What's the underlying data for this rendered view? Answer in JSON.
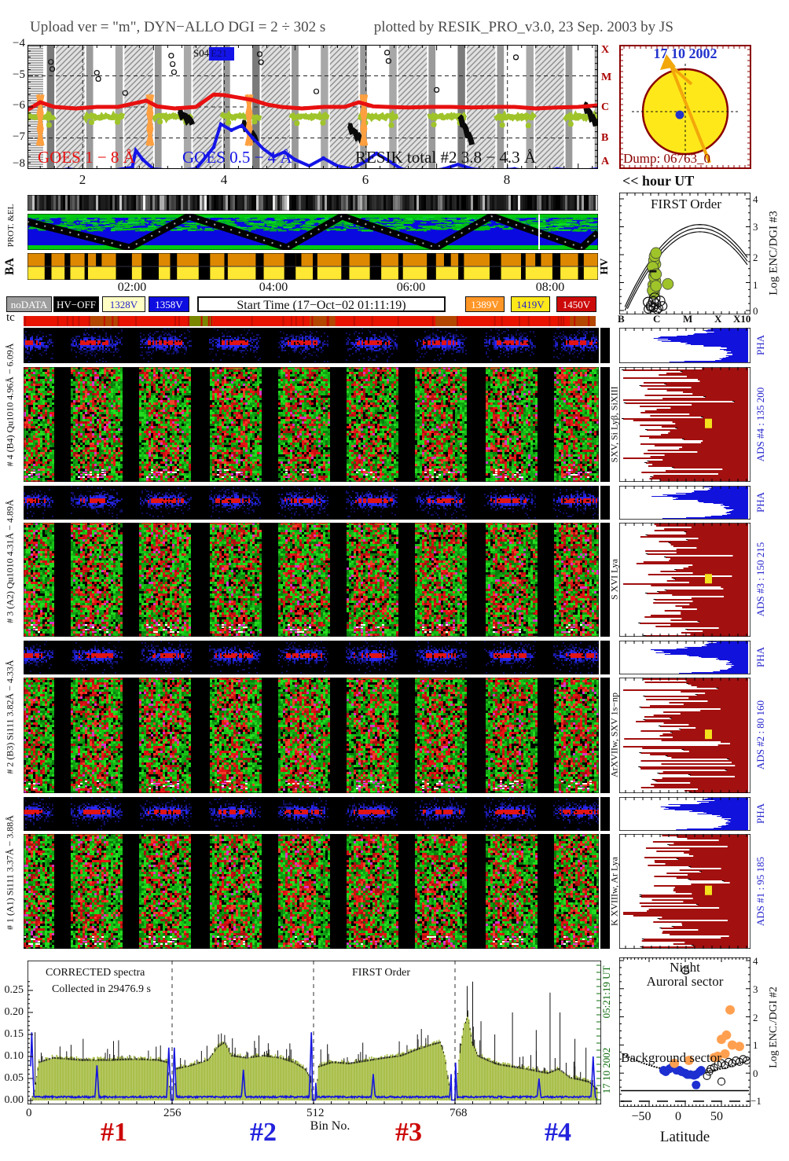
{
  "header": {
    "title_left": "Upload ver = \"m\", DYN−ALLO DGI =   2 ÷ 302 s",
    "title_right": "plotted by RESIK_PRO_v3.0, 23 Sep. 2003 by JS"
  },
  "goes": {
    "y_ticks": [
      "−4",
      "−5",
      "−6",
      "−7",
      "−8"
    ],
    "x_ticks": [
      "2",
      "4",
      "6",
      "8"
    ],
    "class_letters": [
      "X",
      "M",
      "C",
      "B",
      "A"
    ],
    "region_plain": "S04",
    "region_boxed": "E21",
    "labels": [
      {
        "text": "GOES 1 − 8 Å",
        "color": "#e81010"
      },
      {
        "text": "GOES 0.5 − 4 Å",
        "color": "#1414e8"
      },
      {
        "text": "RESIK total #2  3.8 − 4.3 Å",
        "color": "#101010"
      }
    ]
  },
  "sun": {
    "date": "17 10 2002",
    "dump": "Dump: 06763_0",
    "disk_color": "#ffe81a",
    "border_color": "#8b0000",
    "date_color": "#2233cc",
    "arrow_color": "#f2a70a"
  },
  "hour_ut": "<< hour UT",
  "strips": {
    "prot_label": "PROT. &EL",
    "ba_label": "BA",
    "hv_label": "HV",
    "tc_label": "tc",
    "times": [
      "02:00",
      "04:00",
      "06:00",
      "08:00"
    ]
  },
  "legend": {
    "items": [
      {
        "label": "noDATA",
        "bg": "#9e9e9e",
        "fg": "#ffffff"
      },
      {
        "label": "HV−OFF",
        "bg": "#000000",
        "fg": "#ffffff"
      },
      {
        "label": "1328V",
        "bg": "#ffffc4",
        "fg": "#2222cc"
      },
      {
        "label": "1358V",
        "bg": "#0d0de0",
        "fg": "#ffffff"
      },
      {
        "label": "1389V",
        "bg": "#ff9626",
        "fg": "#ffffff"
      },
      {
        "label": "1419V",
        "bg": "#ffe81a",
        "fg": "#2222cc"
      },
      {
        "label": "1450V",
        "bg": "#cc0a0a",
        "fg": "#ffffff"
      }
    ],
    "start_time": "Start Time (17−Oct−02 01:11:19)"
  },
  "channels": [
    {
      "left_label": "# 4 (B4) Qu1010 4.96Å − 6.09Å",
      "species": "SXV, Si Lyβ, SiXIII",
      "pha": "PHA",
      "ads": "ADS #4 :   135 200"
    },
    {
      "left_label": "# 3 (A2) Qu1010 4.31Å − 4.89Å",
      "species": "S XVI Lya",
      "pha": "PHA",
      "ads": "ADS #3 :   150 215"
    },
    {
      "left_label": "# 2 (B3) Si111  3.82Å − 4.33Å",
      "species": "ArXVIIw, SXV 1s−np",
      "pha": "PHA",
      "ads": "ADS #2 :   80 160"
    },
    {
      "left_label": "# 1 (A1) Si111  3.37Å − 3.88Å",
      "species": "K XVIIIw, Ar Lya",
      "pha": "PHA",
      "ads": "ADS #1 :   95 185"
    }
  ],
  "first_order": {
    "title": "FIRST Order",
    "x_ticks": [
      "B",
      "C",
      "M",
      "X",
      "X10"
    ],
    "y_ticks": [
      "4",
      "3",
      "2",
      "1",
      "0"
    ],
    "axis_label": "Log ENC/DGI #3"
  },
  "spectra": {
    "corrected": "CORRECTED spectra",
    "collected": "Collected in 29476.9 s",
    "order": "FIRST Order",
    "y_ticks": [
      "0.25",
      "0.20",
      "0.15",
      "0.10",
      "0.05",
      "0.00"
    ],
    "x_ticks": [
      "0",
      "256",
      "512",
      "768"
    ],
    "x_label": "Bin No.",
    "segments": [
      {
        "label": "#1",
        "color": "#cc0808"
      },
      {
        "label": "#2",
        "color": "#2222dd"
      },
      {
        "label": "#3",
        "color": "#cc0808"
      },
      {
        "label": "#4",
        "color": "#2222dd"
      }
    ],
    "time_top": "05:21:19 UT",
    "time_bottom": "17 10 2002"
  },
  "scatter_panel": {
    "title_1": "Night",
    "title_2": "Auroral sector",
    "bottom_label": "Background sector",
    "x_ticks": [
      "−50",
      "0",
      "50"
    ],
    "x_label": "Latitude",
    "y_ticks": [
      "4",
      "3",
      "2",
      "1",
      "0",
      "−1"
    ],
    "axis_label": "Log ENC./DGI #2"
  },
  "chart_data": {
    "goes_lightcurves": {
      "type": "line",
      "x_unit": "hour UT",
      "x_range": [
        1.22,
        9.28
      ],
      "y_unit": "log X-ray flux (GOES classes A-X)",
      "y_range": [
        -8,
        -4
      ],
      "series": [
        {
          "name": "GOES 1-8 A",
          "color": "#e81010",
          "points": [
            [
              1.22,
              -6.1
            ],
            [
              1.4,
              -5.85
            ],
            [
              1.6,
              -6.0
            ],
            [
              1.9,
              -6.05
            ],
            [
              2.2,
              -6.0
            ],
            [
              2.5,
              -6.0
            ],
            [
              2.9,
              -5.8
            ],
            [
              3.05,
              -5.98
            ],
            [
              3.3,
              -6.05
            ],
            [
              3.6,
              -6.0
            ],
            [
              3.85,
              -5.6
            ],
            [
              4.0,
              -5.62
            ],
            [
              4.2,
              -5.7
            ],
            [
              4.4,
              -5.78
            ],
            [
              4.6,
              -5.92
            ],
            [
              4.8,
              -6.0
            ],
            [
              5.1,
              -6.05
            ],
            [
              5.4,
              -6.0
            ],
            [
              5.7,
              -6.0
            ],
            [
              5.9,
              -5.85
            ],
            [
              6.1,
              -5.98
            ],
            [
              6.3,
              -6.0
            ],
            [
              6.6,
              -6.02
            ],
            [
              6.9,
              -6.0
            ],
            [
              7.2,
              -6.0
            ],
            [
              7.5,
              -6.02
            ],
            [
              7.8,
              -6.0
            ],
            [
              8.1,
              -6.0
            ],
            [
              8.4,
              -6.05
            ],
            [
              8.7,
              -6.02
            ],
            [
              9.0,
              -6.0
            ],
            [
              9.28,
              -5.95
            ]
          ]
        },
        {
          "name": "GOES 0.5-4 A",
          "color": "#1414e8",
          "points": [
            [
              1.22,
              -8.05
            ],
            [
              1.5,
              -8.1
            ],
            [
              1.8,
              -8.0
            ],
            [
              2.1,
              -8.1
            ],
            [
              2.4,
              -8.05
            ],
            [
              2.7,
              -7.95
            ],
            [
              2.75,
              -7.4
            ],
            [
              2.85,
              -7.7
            ],
            [
              3.0,
              -8.0
            ],
            [
              3.3,
              -8.05
            ],
            [
              3.6,
              -8.0
            ],
            [
              3.85,
              -7.3
            ],
            [
              3.95,
              -6.55
            ],
            [
              4.1,
              -6.75
            ],
            [
              4.25,
              -6.6
            ],
            [
              4.4,
              -7.0
            ],
            [
              4.55,
              -7.35
            ],
            [
              4.7,
              -7.6
            ],
            [
              4.85,
              -7.45
            ],
            [
              5.0,
              -7.7
            ],
            [
              5.2,
              -7.9
            ],
            [
              5.4,
              -7.65
            ],
            [
              5.6,
              -7.9
            ],
            [
              5.8,
              -8.0
            ],
            [
              6.0,
              -7.75
            ],
            [
              6.15,
              -7.5
            ],
            [
              6.3,
              -7.7
            ],
            [
              6.5,
              -8.0
            ],
            [
              6.8,
              -8.1
            ],
            [
              7.1,
              -8.0
            ],
            [
              7.3,
              -7.85
            ],
            [
              7.5,
              -8.0
            ],
            [
              7.8,
              -8.05
            ],
            [
              8.1,
              -8.0
            ],
            [
              8.4,
              -8.1
            ],
            [
              8.7,
              -8.0
            ],
            [
              9.0,
              -8.05
            ],
            [
              9.28,
              -8.0
            ]
          ]
        },
        {
          "name": "RESIK total #2 3.8-4.3 A",
          "color": "#9fc42a",
          "shape": "festoons: baseline -6.32 with spikes to -5.45 every ~0.97 h, gaps during orbital night"
        }
      ],
      "black_blobs": [
        [
          3.35,
          -6.15,
          3.55,
          -6.5
        ],
        [
          4.25,
          -6.5,
          4.45,
          -7.05
        ],
        [
          5.75,
          -6.6,
          5.95,
          -7.1
        ],
        [
          7.32,
          -6.3,
          7.5,
          -7.15
        ],
        [
          9.08,
          -5.9,
          9.25,
          -6.55
        ]
      ],
      "orange_spike_hours": [
        1.4,
        2.95,
        4.35,
        5.97
      ],
      "circles": [
        [
          1.55,
          -4.55
        ],
        [
          1.57,
          -4.78
        ],
        [
          2.2,
          -4.9
        ],
        [
          2.22,
          -5.1
        ],
        [
          3.25,
          -4.35
        ],
        [
          3.27,
          -4.62
        ],
        [
          3.29,
          -4.88
        ],
        [
          4.5,
          -4.3
        ],
        [
          4.52,
          -4.56
        ],
        [
          6.3,
          -4.25
        ],
        [
          6.32,
          -4.52
        ],
        [
          8.12,
          -4.4
        ],
        [
          2.6,
          -5.55
        ],
        [
          5.3,
          -5.5
        ],
        [
          7.0,
          -5.45
        ]
      ]
    },
    "first_order": {
      "type": "scatter",
      "x_ticks": [
        "B",
        "C",
        "M",
        "X",
        "X10"
      ],
      "y_range": [
        0,
        4
      ],
      "curve": "three model curves v = 3.08 - 8.2*(t-0.62)^2 offset by 0.13",
      "olive_blob": [
        [
          0.265,
          0.62
        ],
        [
          0.27,
          0.78
        ],
        [
          0.26,
          0.92
        ],
        [
          0.275,
          1.06
        ],
        [
          0.265,
          1.22
        ],
        [
          0.27,
          1.36
        ],
        [
          0.26,
          1.5
        ],
        [
          0.275,
          1.66
        ],
        [
          0.265,
          1.8
        ],
        [
          0.27,
          1.95
        ],
        [
          0.28,
          2.06
        ],
        [
          0.255,
          0.72
        ],
        [
          0.28,
          0.88
        ],
        [
          0.255,
          1.56
        ],
        [
          0.28,
          1.3
        ],
        [
          0.37,
          0.95
        ]
      ],
      "open_circles": [
        [
          0.22,
          0.05
        ],
        [
          0.26,
          0.1
        ],
        [
          0.3,
          0.08
        ],
        [
          0.24,
          0.18
        ],
        [
          0.28,
          0.24
        ],
        [
          0.33,
          0.16
        ],
        [
          0.26,
          0.32
        ],
        [
          0.22,
          0.3
        ],
        [
          0.31,
          0.34
        ],
        [
          0.27,
          0.44
        ],
        [
          0.24,
          0.12
        ],
        [
          0.29,
          0.02
        ]
      ]
    },
    "corrected_spectra": {
      "type": "area",
      "x_label": "Bin No.",
      "x_range": [
        0,
        1024
      ],
      "y_range": [
        0,
        0.28
      ],
      "green_envelope": [
        [
          0,
          0
        ],
        [
          6,
          0.02
        ],
        [
          14,
          0.085
        ],
        [
          40,
          0.095
        ],
        [
          90,
          0.09
        ],
        [
          140,
          0.09
        ],
        [
          190,
          0.092
        ],
        [
          230,
          0.09
        ],
        [
          246,
          0.085
        ],
        [
          250,
          0.03
        ],
        [
          254,
          0
        ],
        [
          258,
          0
        ],
        [
          262,
          0.07
        ],
        [
          290,
          0.078
        ],
        [
          320,
          0.09
        ],
        [
          338,
          0.12
        ],
        [
          350,
          0.13
        ],
        [
          362,
          0.1
        ],
        [
          390,
          0.095
        ],
        [
          420,
          0.1
        ],
        [
          450,
          0.095
        ],
        [
          475,
          0.085
        ],
        [
          495,
          0.07
        ],
        [
          505,
          0.05
        ],
        [
          510,
          0
        ],
        [
          515,
          0
        ],
        [
          520,
          0.075
        ],
        [
          545,
          0.085
        ],
        [
          575,
          0.082
        ],
        [
          605,
          0.088
        ],
        [
          640,
          0.095
        ],
        [
          670,
          0.1
        ],
        [
          700,
          0.115
        ],
        [
          725,
          0.125
        ],
        [
          740,
          0.13
        ],
        [
          748,
          0.1
        ],
        [
          755,
          0.04
        ],
        [
          762,
          0
        ],
        [
          768,
          0
        ],
        [
          774,
          0.09
        ],
        [
          782,
          0.16
        ],
        [
          790,
          0.19
        ],
        [
          798,
          0.13
        ],
        [
          808,
          0.1
        ],
        [
          825,
          0.09
        ],
        [
          845,
          0.08
        ],
        [
          870,
          0.075
        ],
        [
          895,
          0.07
        ],
        [
          915,
          0.065
        ],
        [
          935,
          0.06
        ],
        [
          955,
          0.07
        ],
        [
          975,
          0.05
        ],
        [
          995,
          0.045
        ],
        [
          1010,
          0.04
        ],
        [
          1022,
          0.025
        ]
      ],
      "black_spikes": [
        [
          8,
          0.155
        ],
        [
          95,
          0.14
        ],
        [
          150,
          0.135
        ],
        [
          235,
          0.125
        ],
        [
          340,
          0.15
        ],
        [
          370,
          0.12
        ],
        [
          430,
          0.13
        ],
        [
          700,
          0.15
        ],
        [
          790,
          0.26
        ],
        [
          800,
          0.27
        ],
        [
          815,
          0.18
        ],
        [
          840,
          0.15
        ],
        [
          872,
          0.2
        ],
        [
          915,
          0.16
        ],
        [
          940,
          0.245
        ],
        [
          958,
          0.2
        ],
        [
          985,
          0.14
        ],
        [
          1005,
          0.12
        ]
      ],
      "blue_spikes": [
        [
          2,
          0.155
        ],
        [
          120,
          0.08
        ],
        [
          250,
          0.12
        ],
        [
          256,
          0.205
        ],
        [
          260,
          0.12
        ],
        [
          385,
          0.07
        ],
        [
          508,
          0.155
        ],
        [
          514,
          0.08
        ],
        [
          620,
          0.06
        ],
        [
          762,
          0.08
        ],
        [
          768,
          0.115
        ],
        [
          920,
          0.05
        ],
        [
          1018,
          0.1
        ]
      ],
      "segment_bounds": [
        0,
        256,
        512,
        768,
        1024
      ]
    },
    "background_scatter": {
      "type": "scatter",
      "x_label": "Latitude",
      "x_range": [
        -90,
        95
      ],
      "y_range": [
        -1,
        4
      ],
      "orange": [
        [
          -15,
          0.35
        ],
        [
          5,
          0.45
        ],
        [
          45,
          0.6
        ],
        [
          55,
          0.68
        ],
        [
          50,
          1.2
        ],
        [
          57,
          1.35
        ],
        [
          62,
          2.25
        ],
        [
          65,
          1.0
        ],
        [
          75,
          0.95
        ],
        [
          40,
          0.55
        ]
      ],
      "blue": [
        [
          -30,
          0.1
        ],
        [
          -27,
          0.05
        ],
        [
          -22,
          0.15
        ],
        [
          -18,
          0.22
        ],
        [
          -12,
          0.1
        ],
        [
          -8,
          0.1
        ],
        [
          -5,
          0.05
        ],
        [
          0,
          0.0
        ],
        [
          3,
          -0.05
        ],
        [
          7,
          -0.05
        ],
        [
          12,
          -0.08
        ],
        [
          15,
          -0.05
        ],
        [
          20,
          0.05
        ],
        [
          22,
          0.1
        ],
        [
          15,
          -0.42
        ]
      ],
      "open": [
        [
          30,
          -0.1
        ],
        [
          33,
          0.05
        ],
        [
          35,
          0.15
        ],
        [
          40,
          0.2
        ],
        [
          45,
          0.3
        ],
        [
          50,
          0.35
        ],
        [
          55,
          0.28
        ],
        [
          60,
          0.4
        ],
        [
          65,
          0.35
        ],
        [
          70,
          0.45
        ],
        [
          75,
          0.4
        ],
        [
          80,
          0.5
        ],
        [
          85,
          0.45
        ],
        [
          50,
          -0.3
        ],
        [
          0,
          3.65
        ]
      ],
      "dotted_trend": "v = 0.07 + 0.5*((lat-8)/85)^2",
      "solid_line_v": -0.62,
      "dashed_line_v": -1.0
    },
    "pha_profile": [
      0.28,
      0.3,
      0.45,
      0.68,
      0.62,
      0.4,
      0.22,
      0.16,
      0.14,
      0.16,
      0.28,
      0.9
    ],
    "spectrogram_gaps": {
      "offset": 0.05,
      "period": 0.12,
      "gap_width": 0.03
    },
    "channel_red_bias": [
      0.55,
      0.75,
      0.7,
      0.65
    ]
  }
}
